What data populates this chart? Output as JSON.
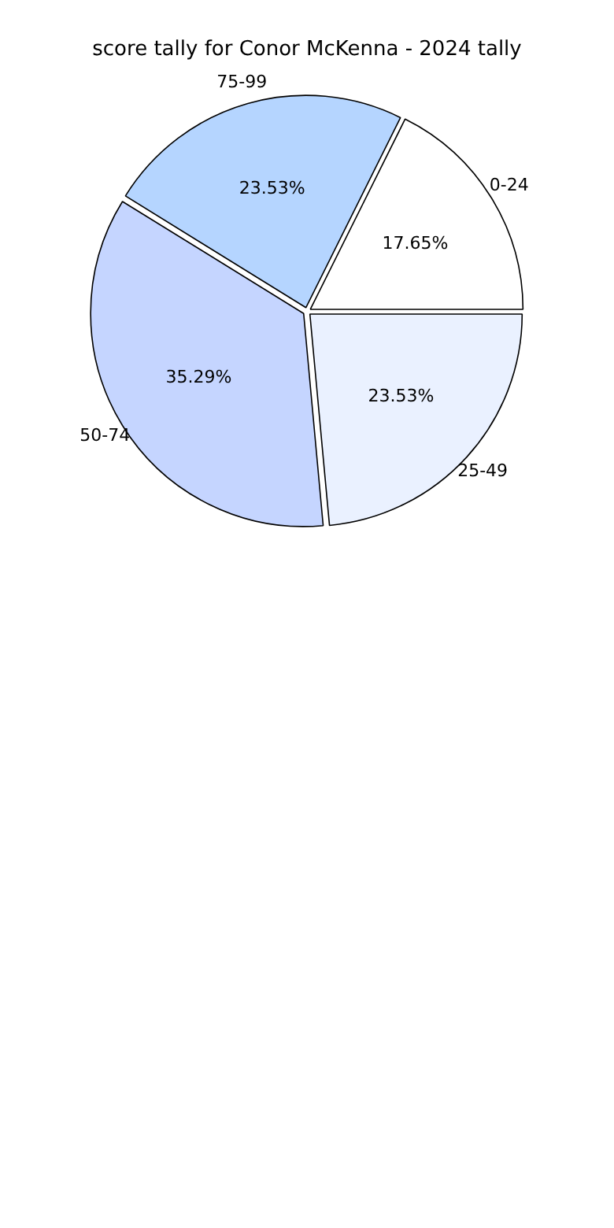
{
  "chart_data": {
    "type": "pie",
    "title": "score tally for Conor McKenna - 2024 tally",
    "categories": [
      "0-24",
      "25-49",
      "50-74",
      "75-99"
    ],
    "values": [
      17.65,
      23.53,
      35.29,
      23.53
    ],
    "colors": [
      "#ffffff",
      "#eaf1ff",
      "#c5d5ff",
      "#b5d5ff"
    ],
    "value_labels": [
      "17.65%",
      "23.53%",
      "35.29%",
      "23.53%"
    ],
    "legend": false
  }
}
